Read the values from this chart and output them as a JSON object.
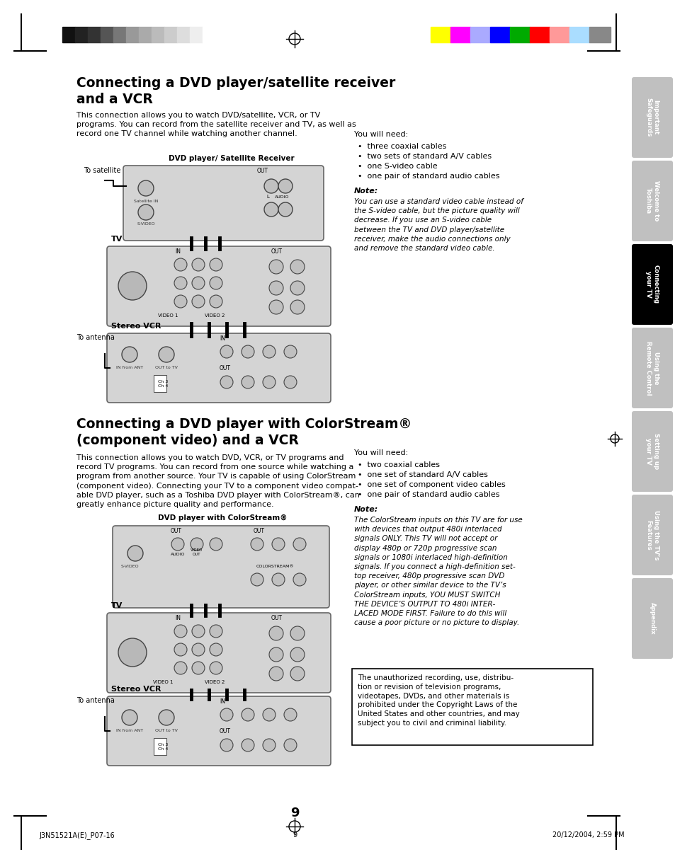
{
  "page_bg": "#ffffff",
  "title1": "Connecting a DVD player/satellite receiver\nand a VCR",
  "title2": "Connecting a DVD player with ColorStream®\n(component video) and a VCR",
  "body1": "This connection allows you to watch DVD/satellite, VCR, or TV\nprograms. You can record from the satellite receiver and TV, as well as\nrecord one TV channel while watching another channel.",
  "body2": "This connection allows you to watch DVD, VCR, or TV programs and\nrecord TV programs. You can record from one source while watching a\nprogram from another source. Your TV is capable of using ColorStream\n(component video). Connecting your TV to a component video compat-\nable DVD player, such as a Toshiba DVD player with ColorStream®, can\ngreatly enhance picture quality and performance.",
  "needs1_title": "You will need:",
  "needs1": [
    "three coaxial cables",
    "two sets of standard A/V cables",
    "one S-video cable",
    "one pair of standard audio cables"
  ],
  "note1_title": "Note:",
  "note1": "You can use a standard video cable instead of\nthe S-video cable, but the picture quality will\ndecrease. If you use an S-video cable\nbetween the TV and DVD player/satellite\nreceiver, make the audio connections only\nand remove the standard video cable.",
  "needs2_title": "You will need:",
  "needs2": [
    "two coaxial cables",
    "one set of standard A/V cables",
    "one set of component video cables",
    "one pair of standard audio cables"
  ],
  "note2_title": "Note:",
  "note2": "The ColorStream inputs on this TV are for use\nwith devices that output 480i interlaced\nsignals ONLY. This TV will not accept or\ndisplay 480p or 720p progressive scan\nsignals or 1080i interlaced high-definition\nsignals. If you connect a high-definition set-\ntop receiver, 480p progressive scan DVD\nplayer, or other similar device to the TV’s\nColorStream inputs, YOU MUST SWITCH\nTHE DEVICE’S OUTPUT TO 480i INTER-\nLACED MODE FIRST. Failure to do this will\ncause a poor picture or no picture to display.",
  "warning_box": "The unauthorized recording, use, distribu-\ntion or revision of television programs,\nvideotapes, DVDs, and other materials is\nprohibited under the Copyright Laws of the\nUnited States and other countries, and may\nsubject you to civil and criminal liability.",
  "page_number": "9",
  "footer_left": "J3N51521A(E)_P07-16",
  "footer_center": "9",
  "footer_right": "20/12/2004, 2:59 PM",
  "sidebar_tabs": [
    {
      "label": "Important\nSafeguards",
      "active": false
    },
    {
      "label": "Welcome to\nToshiba",
      "active": false
    },
    {
      "label": "Connecting\nyour TV",
      "active": true
    },
    {
      "label": "Using the\nRemote Control",
      "active": false
    },
    {
      "label": "Setting up\nyour TV",
      "active": false
    },
    {
      "label": "Using the TV’s\nFeatures",
      "active": false
    },
    {
      "label": "Appendix",
      "active": false
    }
  ],
  "color_bar_left": [
    "#111111",
    "#222222",
    "#333333",
    "#555555",
    "#777777",
    "#999999",
    "#aaaaaa",
    "#bbbbbb",
    "#cccccc",
    "#dddddd",
    "#eeeeee",
    "#ffffff"
  ],
  "color_bar_right": [
    "#ffff00",
    "#ff00ff",
    "#aaaaff",
    "#0000ff",
    "#00aa00",
    "#ff0000",
    "#ff9999",
    "#aaddff",
    "#888888"
  ],
  "color_bar_right_widths": [
    28,
    28,
    28,
    28,
    28,
    28,
    28,
    28,
    30
  ]
}
